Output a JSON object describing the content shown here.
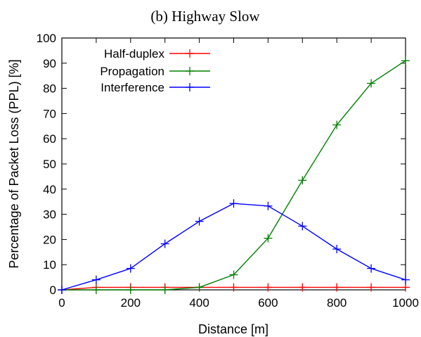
{
  "chart_data": {
    "type": "line",
    "title": "(b) Highway Slow",
    "xlabel": "Distance [m]",
    "ylabel": "Percentage of Packet Loss (PPL) [%]",
    "xlim": [
      0,
      1000
    ],
    "ylim": [
      0,
      100
    ],
    "x_ticks": [
      0,
      200,
      400,
      600,
      800,
      1000
    ],
    "y_ticks": [
      0,
      10,
      20,
      30,
      40,
      50,
      60,
      70,
      80,
      90,
      100
    ],
    "grid": false,
    "legend_position": "top-left",
    "x": [
      0,
      100,
      200,
      300,
      400,
      500,
      600,
      700,
      800,
      900,
      1000
    ],
    "series": [
      {
        "name": "Half-duplex",
        "color": "#ff0000",
        "values": [
          0,
          1,
          1,
          1,
          1,
          1,
          1,
          1,
          1,
          1,
          1
        ]
      },
      {
        "name": "Propagation",
        "color": "#008000",
        "values": [
          0,
          0,
          0,
          0,
          1,
          6,
          20.5,
          43.5,
          65.5,
          82,
          91
        ]
      },
      {
        "name": "Interference",
        "color": "#0000ff",
        "values": [
          0,
          4,
          8.5,
          18.3,
          27.2,
          34.3,
          33.3,
          25.3,
          16.2,
          8.5,
          4
        ]
      }
    ]
  }
}
